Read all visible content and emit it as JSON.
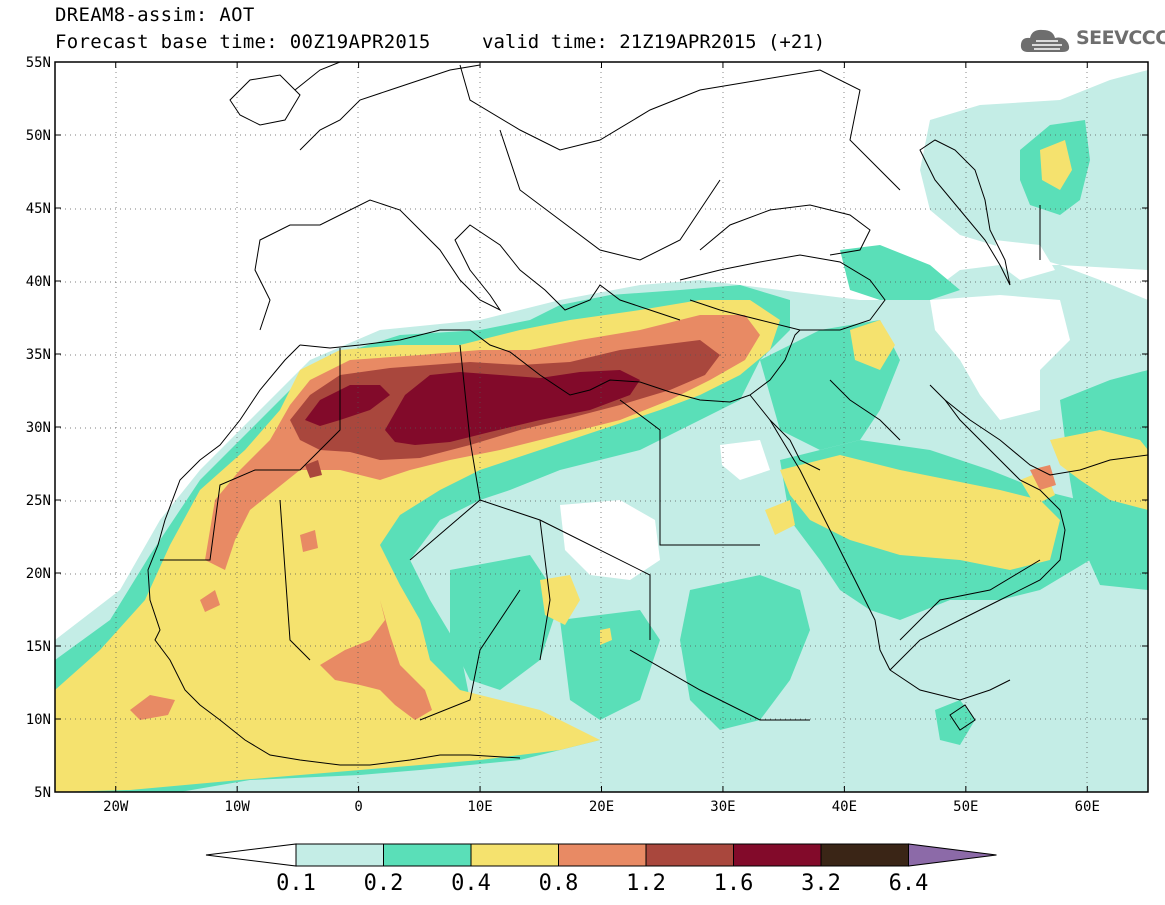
{
  "header": {
    "title_line1": "DREAM8-assim: AOT",
    "title_line2_left": "Forecast base time: 00Z19APR2015",
    "title_line2_right": "valid time: 21Z19APR2015 (+21)",
    "logo_text": "SEEVCCC"
  },
  "map": {
    "lon_range": [
      -25,
      65
    ],
    "lat_range": [
      5,
      55
    ],
    "lat_ticks": [
      {
        "value": 55,
        "label": "55N"
      },
      {
        "value": 50,
        "label": "50N"
      },
      {
        "value": 45,
        "label": "45N"
      },
      {
        "value": 40,
        "label": "40N"
      },
      {
        "value": 35,
        "label": "35N"
      },
      {
        "value": 30,
        "label": "30N"
      },
      {
        "value": 25,
        "label": "25N"
      },
      {
        "value": 20,
        "label": "20N"
      },
      {
        "value": 15,
        "label": "15N"
      },
      {
        "value": 10,
        "label": "10N"
      },
      {
        "value": 5,
        "label": "5N"
      }
    ],
    "lon_ticks": [
      {
        "value": -20,
        "label": "20W"
      },
      {
        "value": -10,
        "label": "10W"
      },
      {
        "value": 0,
        "label": "0"
      },
      {
        "value": 10,
        "label": "10E"
      },
      {
        "value": 20,
        "label": "20E"
      },
      {
        "value": 30,
        "label": "30E"
      },
      {
        "value": 40,
        "label": "40E"
      },
      {
        "value": 50,
        "label": "50E"
      },
      {
        "value": 60,
        "label": "60E"
      }
    ],
    "gridlines": "dotted"
  },
  "colorbar": {
    "labels": [
      "0.1",
      "0.2",
      "0.4",
      "0.8",
      "1.2",
      "1.6",
      "3.2",
      "6.4"
    ],
    "colors": [
      "#ffffff",
      "#c4ede6",
      "#5adfb8",
      "#f5e26e",
      "#e88a64",
      "#a9473d",
      "#820a2a",
      "#3a2516",
      "#8c6aa8"
    ],
    "extend": "both"
  },
  "colors": {
    "bg": "#ffffff",
    "c1": "#c4ede6",
    "c2": "#5adfb8",
    "c3": "#f5e26e",
    "c4": "#e88a64",
    "c5": "#a9473d",
    "c6": "#820a2a"
  }
}
